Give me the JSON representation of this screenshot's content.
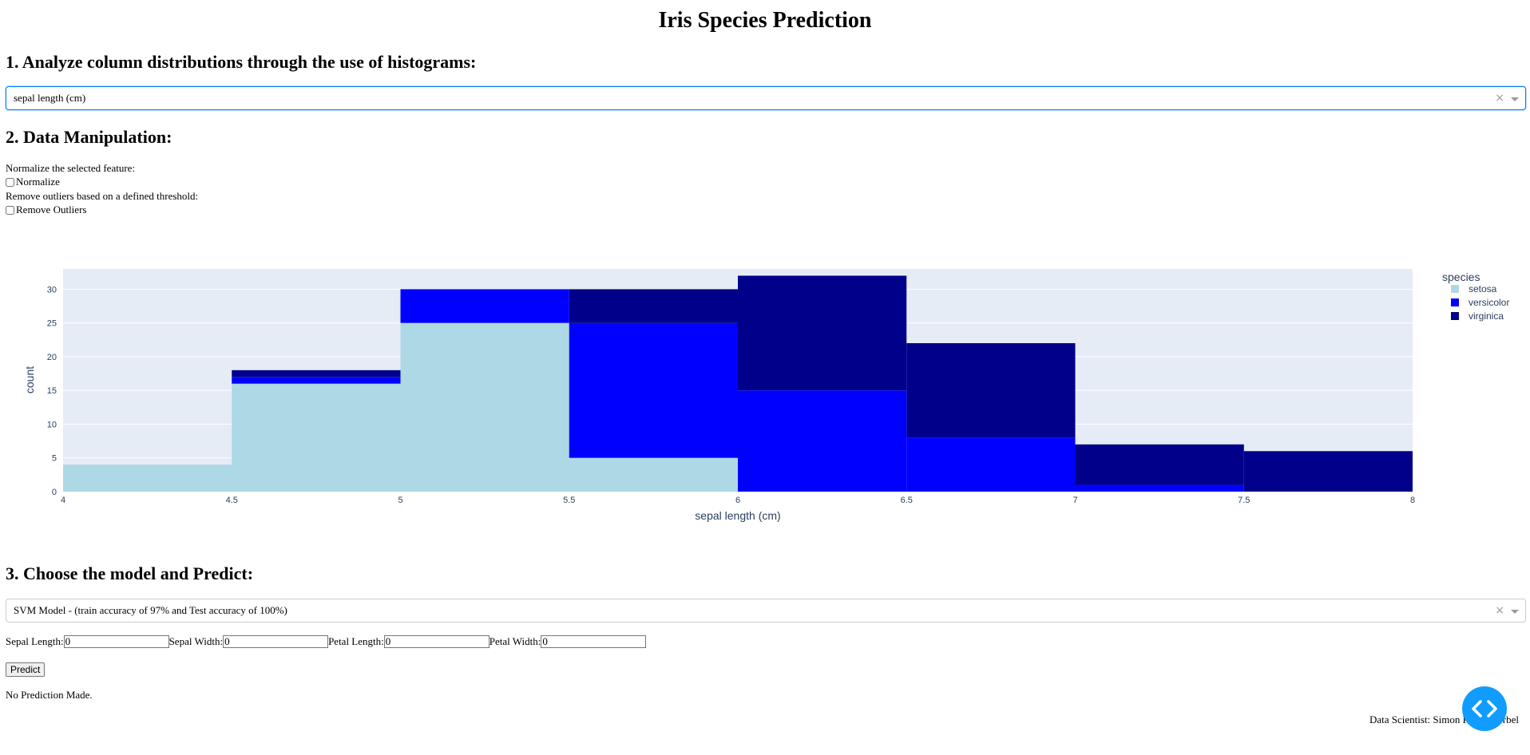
{
  "title": "Iris Species Prediction",
  "section1": {
    "heading": "1. Analyze column distributions through the use of histograms:",
    "dropdown_value": "sepal length (cm)"
  },
  "section2": {
    "heading": "2. Data Manipulation:",
    "normalize_caption": "Normalize the selected feature:",
    "normalize_label": "Normalize",
    "normalize_checked": false,
    "outliers_caption": "Remove outliers based on a defined threshold:",
    "outliers_label": "Remove Outliers",
    "outliers_checked": false
  },
  "chart_data": {
    "type": "bar",
    "stacked": true,
    "xlabel": "sepal length (cm)",
    "ylabel": "count",
    "xlim": [
      4,
      8
    ],
    "ylim": [
      0,
      33
    ],
    "x_ticks": [
      "4",
      "4.5",
      "5",
      "5.5",
      "6",
      "6.5",
      "7",
      "7.5",
      "8"
    ],
    "y_ticks": [
      "0",
      "5",
      "10",
      "15",
      "20",
      "25",
      "30"
    ],
    "bins": [
      [
        4,
        4.5
      ],
      [
        4.5,
        5
      ],
      [
        5,
        5.5
      ],
      [
        5.5,
        6
      ],
      [
        6,
        6.5
      ],
      [
        6.5,
        7
      ],
      [
        7,
        7.5
      ],
      [
        7.5,
        8
      ]
    ],
    "legend_title": "species",
    "legend_position": "right",
    "grid": true,
    "series": [
      {
        "name": "setosa",
        "color": "#add8e6",
        "values": [
          4,
          16,
          25,
          5,
          0,
          0,
          0,
          0
        ]
      },
      {
        "name": "versicolor",
        "color": "#0000ff",
        "values": [
          0,
          1,
          5,
          20,
          15,
          8,
          1,
          0
        ]
      },
      {
        "name": "virginica",
        "color": "#00008b",
        "values": [
          0,
          1,
          0,
          5,
          17,
          14,
          6,
          6
        ]
      }
    ]
  },
  "section3": {
    "heading": "3. Choose the model and Predict:",
    "model_value": "SVM Model - (train accuracy of 97% and Test accuracy of 100%)",
    "fields": [
      {
        "label": "Sepal Length:",
        "value": "0"
      },
      {
        "label": "Sepal Width:",
        "value": "0"
      },
      {
        "label": "Petal Length:",
        "value": "0"
      },
      {
        "label": "Petal Width:",
        "value": "0"
      }
    ],
    "predict_label": "Predict",
    "result": "No Prediction Made.",
    "footer": "Data Scientist: Simon Pierre Korbel"
  },
  "colors": {
    "accent": "#119dff",
    "focus": "#007eff",
    "plot_bg": "#e5ecf6"
  }
}
